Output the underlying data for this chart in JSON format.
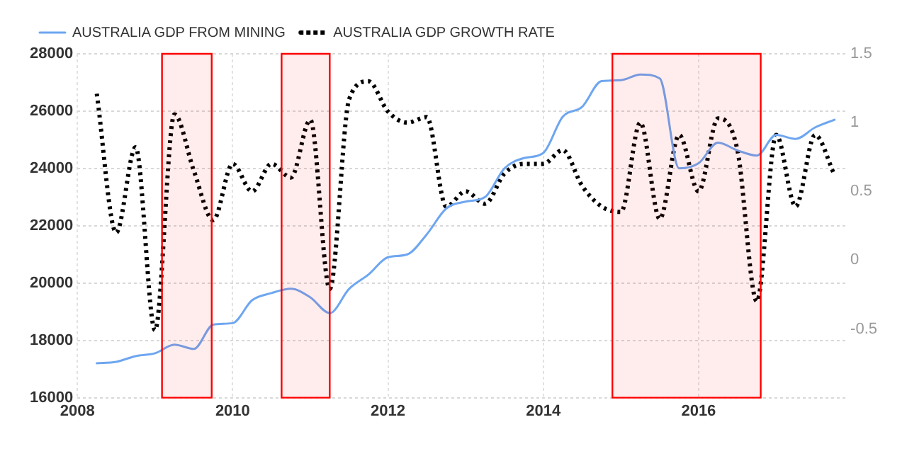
{
  "chart_data": {
    "type": "line",
    "legend": "top left",
    "grid": true,
    "x": [
      2008.25,
      2008.5,
      2008.75,
      2009,
      2009.25,
      2009.5,
      2009.75,
      2010,
      2010.25,
      2010.5,
      2010.75,
      2011,
      2011.25,
      2011.5,
      2011.75,
      2012,
      2012.25,
      2012.5,
      2012.75,
      2013,
      2013.25,
      2013.5,
      2013.75,
      2014,
      2014.25,
      2014.5,
      2014.75,
      2015,
      2015.25,
      2015.5,
      2015.75,
      2016,
      2016.25,
      2016.5,
      2016.75,
      2017,
      2017.25,
      2017.5,
      2017.75
    ],
    "series": [
      {
        "name": "AUSTRALIA GDP FROM MINING",
        "color": "#6ea6f0",
        "line_style": "solid",
        "values": [
          17200,
          17250,
          17450,
          17550,
          17850,
          17700,
          18550,
          18600,
          19400,
          19650,
          19800,
          19500,
          18950,
          19800,
          20300,
          20900,
          21000,
          21700,
          22600,
          22840,
          23000,
          24000,
          24360,
          24540,
          25800,
          26150,
          27050,
          27080,
          27280,
          27140,
          24000,
          24180,
          24900,
          24630,
          24450,
          25170,
          25030,
          25430,
          25700
        ]
      },
      {
        "name": "AUSTRALIA GDP GROWTH RATE",
        "color": "#000000",
        "line_style": "dotted",
        "axis": "y2",
        "values": [
          1.21,
          0.2,
          0.82,
          -0.51,
          1.06,
          0.65,
          0.29,
          0.7,
          0.5,
          0.7,
          0.6,
          1.02,
          -0.21,
          1.17,
          1.3,
          1.08,
          1.0,
          1.04,
          0.39,
          0.5,
          0.41,
          0.63,
          0.7,
          0.7,
          0.8,
          0.54,
          0.39,
          0.35,
          1.0,
          0.3,
          0.91,
          0.5,
          1.03,
          0.8,
          -0.3,
          0.91,
          0.39,
          0.91,
          0.62
        ]
      }
    ],
    "xlim": [
      2008,
      2017.9
    ],
    "xticks": [
      2008,
      2010,
      2012,
      2014,
      2016
    ],
    "ylim": [
      16000,
      28000
    ],
    "yticks": [
      16000,
      18000,
      20000,
      22000,
      24000,
      26000,
      28000
    ],
    "y2lim": [
      -1,
      1.5
    ],
    "y2ticks": [
      -0.5,
      0,
      0.5,
      1,
      1.5
    ],
    "bands": [
      {
        "axis": "x",
        "from": 2009.09,
        "to": 2009.73,
        "color": "#ff0000"
      },
      {
        "axis": "x",
        "from": 2010.63,
        "to": 2011.25,
        "color": "#ff0000"
      },
      {
        "axis": "x",
        "from": 2014.89,
        "to": 2016.8,
        "color": "#ff0000"
      }
    ]
  }
}
